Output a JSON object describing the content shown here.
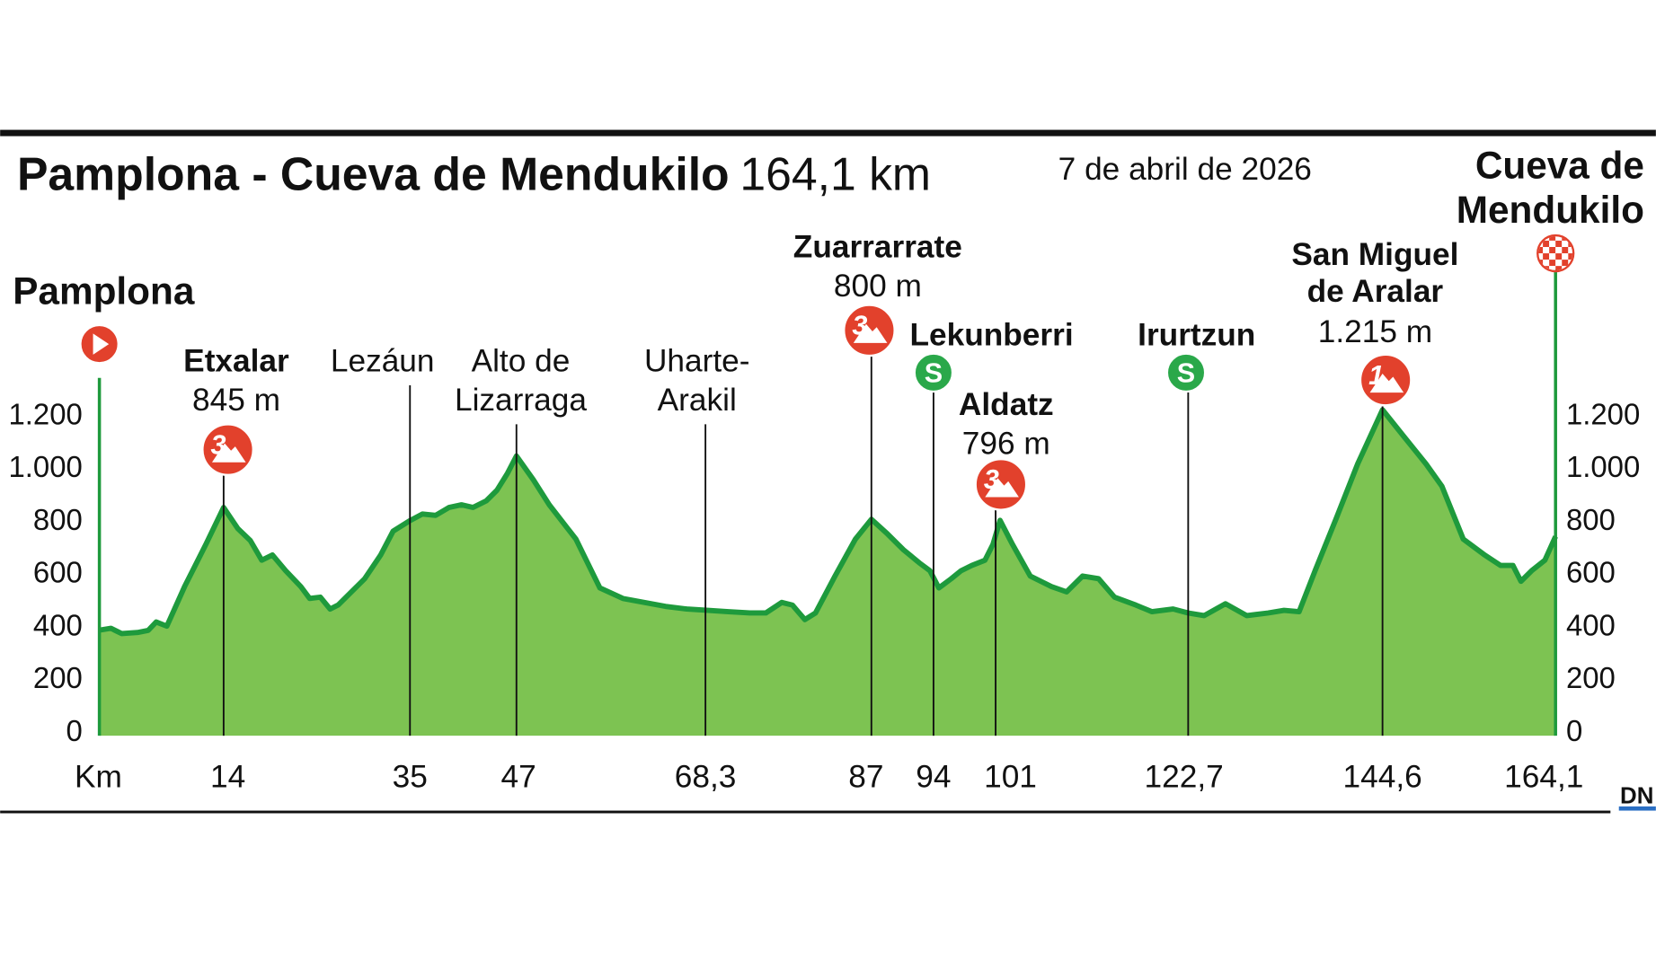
{
  "chart_data": {
    "type": "area",
    "title": "Pamplona - Cueva de Mendukilo",
    "distance": "164,1 km",
    "date": "7 de abril de 2026",
    "start": "Pamplona",
    "finish_lines": [
      "Cueva de",
      "Mendukilo"
    ],
    "logo": "DN",
    "x_label": "Km",
    "x": [
      0,
      1.3,
      2.5,
      4.3,
      5.5,
      6.4,
      7.6,
      9.6,
      12,
      14,
      15.6,
      17,
      18.3,
      19.5,
      21,
      22.7,
      23.7,
      24.9,
      26,
      26.9,
      28.1,
      29.9,
      31.7,
      33.1,
      35,
      36.4,
      37.9,
      39.4,
      40.8,
      42.1,
      43.6,
      44.8,
      46,
      47,
      48.9,
      50.7,
      53.7,
      56.4,
      59,
      61.4,
      63.8,
      66.2,
      68.6,
      70.9,
      73.3,
      75.1,
      76.9,
      78.1,
      79.5,
      80.7,
      82.9,
      85.2,
      87,
      88.8,
      90.6,
      92.4,
      93.6,
      94.6,
      96,
      97.1,
      98.3,
      99.8,
      100.7,
      101.5,
      102.9,
      104.9,
      107.3,
      109,
      110.8,
      112.6,
      114.4,
      116.8,
      118.6,
      121,
      122.7,
      124.5,
      126.9,
      129.3,
      131.7,
      133.5,
      135.2,
      137,
      139.4,
      141.8,
      144.6,
      147.1,
      149.5,
      151.3,
      153.7,
      156.1,
      157.9,
      159.3,
      160.2,
      161.4,
      162.9,
      164.1
    ],
    "values": [
      380,
      387,
      367,
      371,
      379,
      411,
      395,
      545,
      705,
      845,
      765,
      720,
      645,
      665,
      605,
      545,
      500,
      505,
      460,
      475,
      515,
      575,
      665,
      755,
      795,
      820,
      815,
      845,
      855,
      845,
      870,
      910,
      975,
      1040,
      950,
      855,
      725,
      540,
      500,
      485,
      470,
      460,
      455,
      450,
      445,
      445,
      485,
      475,
      420,
      445,
      585,
      725,
      800,
      745,
      685,
      635,
      605,
      540,
      575,
      605,
      625,
      645,
      705,
      796,
      705,
      585,
      545,
      525,
      585,
      575,
      505,
      475,
      450,
      460,
      445,
      435,
      480,
      435,
      445,
      455,
      450,
      605,
      805,
      1010,
      1215,
      1110,
      1010,
      925,
      725,
      665,
      625,
      625,
      565,
      605,
      645,
      735
    ],
    "color": "#7dc352",
    "line_color": "#1e9a3c",
    "xlim": [
      0,
      164.1
    ],
    "ylim": [
      0,
      1200
    ],
    "yticks": [
      0,
      200,
      400,
      600,
      800,
      {
        "value": 1000,
        "label": "1.000"
      },
      {
        "value": 1200,
        "label": "1.200"
      }
    ],
    "xticks": [
      14,
      35,
      47,
      {
        "value": 68.3,
        "label": "68,3"
      },
      87,
      94,
      101,
      {
        "value": 122.7,
        "label": "122,7"
      },
      {
        "value": 144.6,
        "label": "144,6"
      },
      {
        "value": 164.1,
        "label": "164,1"
      }
    ],
    "annotations": [
      {
        "km": 14,
        "lines": [
          "Etxalar"
        ],
        "altitude": "845 m",
        "badge": "3",
        "badge_type": "climb"
      },
      {
        "km": 35,
        "lines": [
          "Lezáun"
        ]
      },
      {
        "km": 47,
        "lines": [
          "Alto de",
          "Lizarraga"
        ]
      },
      {
        "km": 68.3,
        "lines": [
          "Uharte-",
          "Arakil"
        ]
      },
      {
        "km": 87,
        "lines": [
          "Zuarrarrate"
        ],
        "altitude": "800 m",
        "badge": "3",
        "badge_type": "climb"
      },
      {
        "km": 94,
        "lines": [
          "Lekunberri"
        ],
        "badge": "S",
        "badge_type": "sprint"
      },
      {
        "km": 101,
        "lines": [
          "Aldatz"
        ],
        "altitude": "796 m",
        "badge": "3",
        "badge_type": "climb"
      },
      {
        "km": 122.7,
        "lines": [
          "Irurtzun"
        ],
        "badge": "S",
        "badge_type": "sprint"
      },
      {
        "km": 144.6,
        "lines": [
          "San Miguel",
          "de Aralar"
        ],
        "altitude": "1.215 m",
        "badge": "1",
        "badge_type": "climb"
      }
    ]
  }
}
